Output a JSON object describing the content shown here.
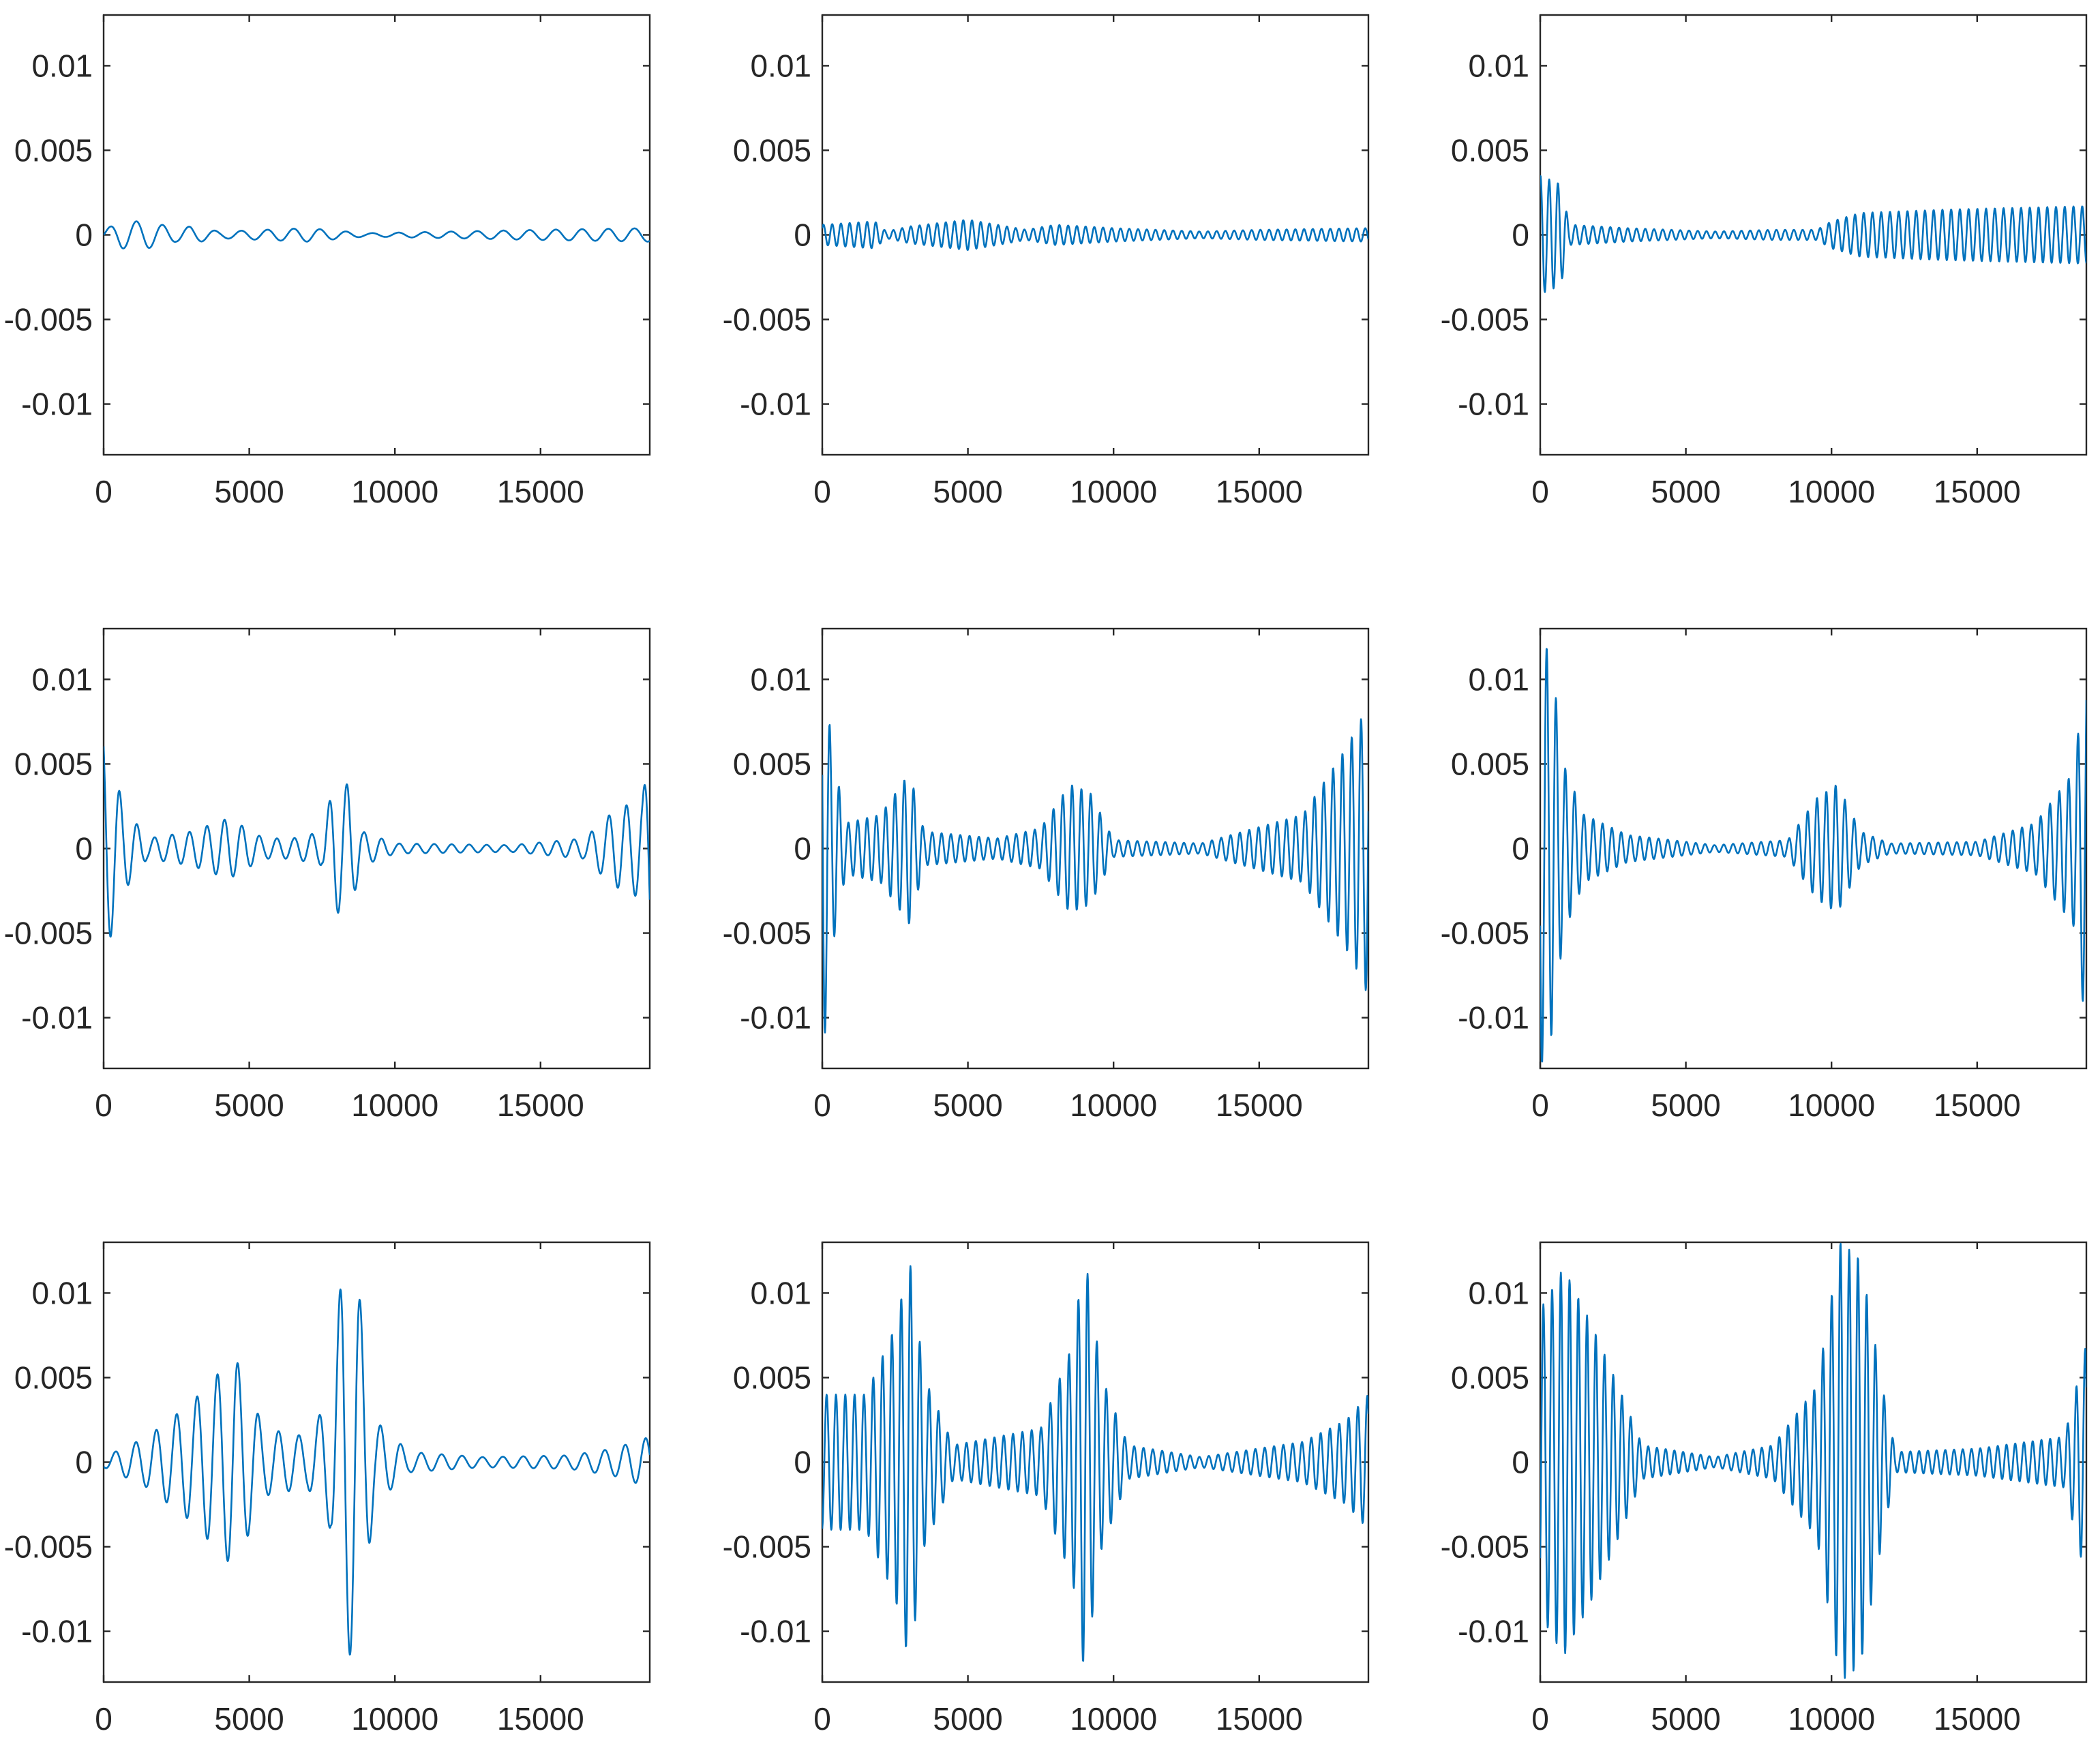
{
  "chart_data": [
    {
      "type": "line",
      "title": "",
      "xlabel": "",
      "ylabel": "",
      "xlim": [
        0,
        18750
      ],
      "ylim": [
        -0.013,
        0.013
      ],
      "xticks": [
        0,
        5000,
        10000,
        15000
      ],
      "xtick_labels": [
        "0",
        "5000",
        "10000",
        "15000"
      ],
      "yticks": [
        -0.01,
        -0.005,
        0,
        0.005,
        0.01
      ],
      "ytick_labels": [
        "-0.01",
        "-0.005",
        "0",
        "0.005",
        "0.01"
      ],
      "grid": false,
      "series": [
        {
          "color": "#0072BD",
          "x_end": 18750,
          "envelope": [
            [
              0,
              0.0003
            ],
            [
              600,
              0.0008
            ],
            [
              1500,
              0.0008
            ],
            [
              2500,
              0.0004
            ],
            [
              3000,
              0.0005
            ],
            [
              4000,
              0.0002
            ],
            [
              5500,
              0.0003
            ],
            [
              7000,
              0.0004
            ],
            [
              9000,
              0.0001
            ],
            [
              12000,
              0.0002
            ],
            [
              15000,
              0.0003
            ],
            [
              18750,
              0.0004
            ]
          ],
          "period": 900
        }
      ]
    },
    {
      "type": "line",
      "title": "",
      "xlabel": "",
      "ylabel": "",
      "xlim": [
        0,
        18750
      ],
      "ylim": [
        -0.013,
        0.013
      ],
      "xticks": [
        0,
        5000,
        10000,
        15000
      ],
      "xtick_labels": [
        "0",
        "5000",
        "10000",
        "15000"
      ],
      "yticks": [
        -0.01,
        -0.005,
        0,
        0.005,
        0.01
      ],
      "ytick_labels": [
        "-0.01",
        "-0.005",
        "0",
        "0.005",
        "0.01"
      ],
      "grid": false,
      "series": [
        {
          "color": "#0072BD",
          "x_end": 18750,
          "envelope": [
            [
              0,
              0.0006
            ],
            [
              1800,
              0.0008
            ],
            [
              2200,
              0.0002
            ],
            [
              3000,
              0.0005
            ],
            [
              5000,
              0.0009
            ],
            [
              7000,
              0.0003
            ],
            [
              8000,
              0.0006
            ],
            [
              10000,
              0.0004
            ],
            [
              13000,
              0.0002
            ],
            [
              15000,
              0.0003
            ],
            [
              18750,
              0.0004
            ]
          ],
          "period": 300
        }
      ]
    },
    {
      "type": "line",
      "title": "",
      "xlabel": "",
      "ylabel": "",
      "xlim": [
        0,
        18750
      ],
      "ylim": [
        -0.013,
        0.013
      ],
      "xticks": [
        0,
        5000,
        10000,
        15000
      ],
      "xtick_labels": [
        "0",
        "5000",
        "10000",
        "15000"
      ],
      "yticks": [
        -0.01,
        -0.005,
        0,
        0.005,
        0.01
      ],
      "ytick_labels": [
        "-0.01",
        "-0.005",
        "0",
        "0.005",
        "0.01"
      ],
      "grid": false,
      "series": [
        {
          "color": "#0072BD",
          "x_end": 18750,
          "envelope": [
            [
              0,
              0.0035
            ],
            [
              700,
              0.003
            ],
            [
              1000,
              0.0006
            ],
            [
              3000,
              0.0004
            ],
            [
              6000,
              0.0002
            ],
            [
              8000,
              0.0003
            ],
            [
              9500,
              0.0003
            ],
            [
              10000,
              0.0008
            ],
            [
              11000,
              0.0013
            ],
            [
              14000,
              0.0015
            ],
            [
              18750,
              0.0017
            ]
          ],
          "period": 300
        }
      ]
    },
    {
      "type": "line",
      "title": "",
      "xlabel": "",
      "ylabel": "",
      "xlim": [
        0,
        18750
      ],
      "ylim": [
        -0.013,
        0.013
      ],
      "xticks": [
        0,
        5000,
        10000,
        15000
      ],
      "xtick_labels": [
        "0",
        "5000",
        "10000",
        "15000"
      ],
      "yticks": [
        -0.01,
        -0.005,
        0,
        0.005,
        0.01
      ],
      "ytick_labels": [
        "-0.01",
        "-0.005",
        "0",
        "0.005",
        "0.01"
      ],
      "grid": false,
      "series": [
        {
          "color": "#0072BD",
          "x_end": 18750,
          "envelope": [
            [
              0,
              0.007
            ],
            [
              300,
              0.0048
            ],
            [
              700,
              0.0025
            ],
            [
              1500,
              0.0006
            ],
            [
              3000,
              0.001
            ],
            [
              4300,
              0.0018
            ],
            [
              5500,
              0.0006
            ],
            [
              6500,
              0.0006
            ],
            [
              7500,
              0.001
            ],
            [
              7900,
              0.0038
            ],
            [
              8400,
              0.0038
            ],
            [
              8900,
              0.001
            ],
            [
              10000,
              0.0003
            ],
            [
              14000,
              0.0002
            ],
            [
              16500,
              0.0006
            ],
            [
              17500,
              0.0022
            ],
            [
              18500,
              0.003
            ],
            [
              18750,
              0.006
            ]
          ],
          "period": 600
        }
      ]
    },
    {
      "type": "line",
      "title": "",
      "xlabel": "",
      "ylabel": "",
      "xlim": [
        0,
        18750
      ],
      "ylim": [
        -0.013,
        0.013
      ],
      "xticks": [
        0,
        5000,
        10000,
        15000
      ],
      "xtick_labels": [
        "0",
        "5000",
        "10000",
        "15000"
      ],
      "yticks": [
        -0.01,
        -0.005,
        0,
        0.005,
        0.01
      ],
      "ytick_labels": [
        "-0.01",
        "-0.005",
        "0",
        "0.005",
        "0.01"
      ],
      "grid": false,
      "series": [
        {
          "color": "#0072BD",
          "x_end": 18750,
          "envelope": [
            [
              0,
              0.013
            ],
            [
              300,
              0.0063
            ],
            [
              800,
              0.0015
            ],
            [
              2000,
              0.002
            ],
            [
              3000,
              0.0045
            ],
            [
              3500,
              0.001
            ],
            [
              6000,
              0.0006
            ],
            [
              7500,
              0.0012
            ],
            [
              8500,
              0.0038
            ],
            [
              9200,
              0.0033
            ],
            [
              10000,
              0.0005
            ],
            [
              13000,
              0.0003
            ],
            [
              16500,
              0.002
            ],
            [
              18000,
              0.006
            ],
            [
              18600,
              0.008
            ],
            [
              18750,
              0.009
            ]
          ],
          "period": 320
        }
      ]
    },
    {
      "type": "line",
      "title": "",
      "xlabel": "",
      "ylabel": "",
      "xlim": [
        0,
        18750
      ],
      "ylim": [
        -0.013,
        0.013
      ],
      "xticks": [
        0,
        5000,
        10000,
        15000
      ],
      "xtick_labels": [
        "0",
        "5000",
        "10000",
        "15000"
      ],
      "yticks": [
        -0.01,
        -0.005,
        0,
        0.005,
        0.01
      ],
      "ytick_labels": [
        "-0.01",
        "-0.005",
        "0",
        "0.005",
        "0.01"
      ],
      "grid": false,
      "series": [
        {
          "color": "#0072BD",
          "x_end": 18750,
          "envelope": [
            [
              0,
              0.013
            ],
            [
              400,
              0.011
            ],
            [
              800,
              0.005
            ],
            [
              1500,
              0.002
            ],
            [
              3000,
              0.0008
            ],
            [
              6000,
              0.0002
            ],
            [
              8500,
              0.0005
            ],
            [
              9500,
              0.003
            ],
            [
              10200,
              0.0038
            ],
            [
              11000,
              0.001
            ],
            [
              12000,
              0.0003
            ],
            [
              15000,
              0.0004
            ],
            [
              17000,
              0.0015
            ],
            [
              18300,
              0.0045
            ],
            [
              18750,
              0.0108
            ]
          ],
          "period": 320
        }
      ]
    },
    {
      "type": "line",
      "title": "",
      "xlabel": "",
      "ylabel": "",
      "xlim": [
        0,
        18750
      ],
      "ylim": [
        -0.013,
        0.013
      ],
      "xticks": [
        0,
        5000,
        10000,
        15000
      ],
      "xtick_labels": [
        "0",
        "5000",
        "10000",
        "15000"
      ],
      "yticks": [
        -0.01,
        -0.005,
        0,
        0.005,
        0.01
      ],
      "ytick_labels": [
        "-0.01",
        "-0.005",
        "0",
        "0.005",
        "0.01"
      ],
      "grid": false,
      "series": [
        {
          "color": "#0072BD",
          "x_end": 18750,
          "envelope": [
            [
              0,
              0.0003
            ],
            [
              1500,
              0.0015
            ],
            [
              3000,
              0.0035
            ],
            [
              4500,
              0.0063
            ],
            [
              5500,
              0.002
            ],
            [
              7000,
              0.0015
            ],
            [
              7800,
              0.004
            ],
            [
              8200,
              0.0118
            ],
            [
              8700,
              0.011
            ],
            [
              9300,
              0.0025
            ],
            [
              10500,
              0.0006
            ],
            [
              13000,
              0.0003
            ],
            [
              16000,
              0.0004
            ],
            [
              17500,
              0.0008
            ],
            [
              18750,
              0.0015
            ]
          ],
          "period": 700
        }
      ]
    },
    {
      "type": "line",
      "title": "",
      "xlabel": "",
      "ylabel": "",
      "xlim": [
        0,
        18750
      ],
      "ylim": [
        -0.013,
        0.013
      ],
      "xticks": [
        0,
        5000,
        10000,
        15000
      ],
      "xtick_labels": [
        "0",
        "5000",
        "10000",
        "15000"
      ],
      "yticks": [
        -0.01,
        -0.005,
        0,
        0.005,
        0.01
      ],
      "ytick_labels": [
        "-0.01",
        "-0.005",
        "0",
        "0.005",
        "0.01"
      ],
      "grid": false,
      "series": [
        {
          "color": "#0072BD",
          "x_end": 18750,
          "envelope": [
            [
              0,
              0.004
            ],
            [
              1500,
              0.004
            ],
            [
              2500,
              0.008
            ],
            [
              3000,
              0.012
            ],
            [
              3500,
              0.005
            ],
            [
              4500,
              0.001
            ],
            [
              7500,
              0.002
            ],
            [
              8600,
              0.007
            ],
            [
              9000,
              0.0125
            ],
            [
              9600,
              0.005
            ],
            [
              10500,
              0.001
            ],
            [
              13000,
              0.0003
            ],
            [
              16500,
              0.0012
            ],
            [
              18000,
              0.0025
            ],
            [
              18750,
              0.004
            ]
          ],
          "period": 320
        }
      ]
    },
    {
      "type": "line",
      "title": "",
      "xlabel": "",
      "ylabel": "",
      "xlim": [
        0,
        18750
      ],
      "ylim": [
        -0.013,
        0.013
      ],
      "xticks": [
        0,
        5000,
        10000,
        15000
      ],
      "xtick_labels": [
        "0",
        "5000",
        "10000",
        "15000"
      ],
      "yticks": [
        -0.01,
        -0.005,
        0,
        0.005,
        0.01
      ],
      "ytick_labels": [
        "-0.01",
        "-0.005",
        "0",
        "0.005",
        "0.01"
      ],
      "grid": false,
      "series": [
        {
          "color": "#0072BD",
          "x_end": 18750,
          "envelope": [
            [
              0,
              0.009
            ],
            [
              800,
              0.0115
            ],
            [
              1800,
              0.008
            ],
            [
              2800,
              0.004
            ],
            [
              3500,
              0.001
            ],
            [
              6000,
              0.0003
            ],
            [
              8000,
              0.001
            ],
            [
              9500,
              0.0045
            ],
            [
              10300,
              0.013
            ],
            [
              11000,
              0.012
            ],
            [
              11800,
              0.004
            ],
            [
              12200,
              0.0006
            ],
            [
              15000,
              0.0008
            ],
            [
              18000,
              0.0015
            ],
            [
              18750,
              0.007
            ]
          ],
          "period": 300
        }
      ]
    }
  ]
}
